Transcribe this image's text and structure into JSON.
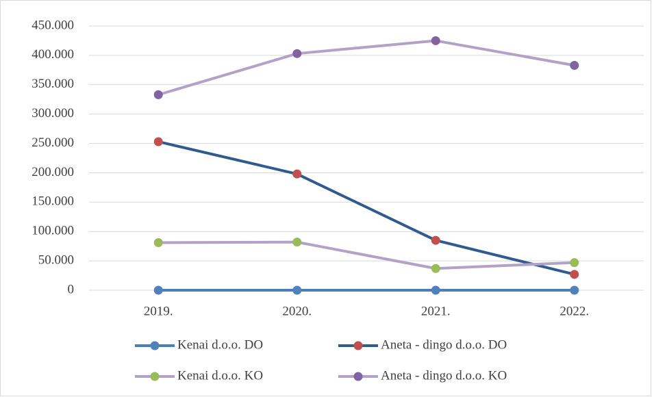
{
  "chart_data": {
    "type": "line",
    "categories": [
      "2019.",
      "2020.",
      "2021.",
      "2022."
    ],
    "series": [
      {
        "name": "Kenai d.o.o. DO",
        "color": "#4a7ebb",
        "marker_color": "#4f81bd",
        "values": [
          0,
          0,
          0,
          0
        ]
      },
      {
        "name": "Aneta - dingo d.o.o. DO",
        "color": "#2f5b8f",
        "marker_color": "#c0504d",
        "values": [
          253000,
          198000,
          85000,
          27000
        ]
      },
      {
        "name": "Kenai d.o.o. KO",
        "color": "#b3a2c7",
        "marker_color": "#9bbb59",
        "values": [
          81000,
          82000,
          37000,
          47000
        ]
      },
      {
        "name": "Aneta - dingo d.o.o. KO",
        "color": "#b3a2c7",
        "marker_color": "#8064a2",
        "values": [
          333000,
          403000,
          425000,
          383000
        ]
      }
    ],
    "ylim": [
      0,
      450000
    ],
    "yticks": [
      0,
      {
        "value": 50000,
        "label": "50.000"
      },
      {
        "value": 100000,
        "label": "100.000"
      },
      {
        "value": 150000,
        "label": "150.000"
      },
      {
        "value": 200000,
        "label": "200.000"
      },
      {
        "value": 250000,
        "label": "250.000"
      },
      {
        "value": 300000,
        "label": "300.000"
      },
      {
        "value": 350000,
        "label": "350.000"
      },
      {
        "value": 400000,
        "label": "400.000"
      },
      {
        "value": 450000,
        "label": "450.000"
      }
    ],
    "grid": true,
    "legend": "bottom"
  }
}
